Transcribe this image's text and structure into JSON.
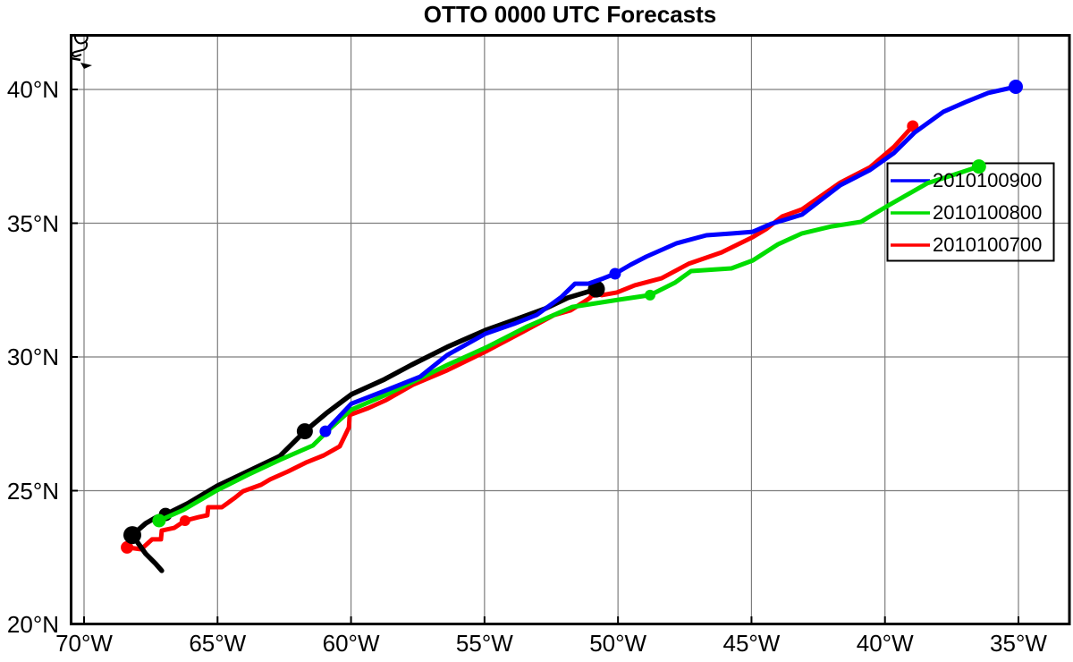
{
  "chart_data": {
    "type": "line",
    "title": "OTTO 0000 UTC Forecasts",
    "grid": true,
    "background": "#ffffff",
    "gridline_color": "#7d7d7d",
    "frame_color": "#000000",
    "x_axis": {
      "unit": "degrees west longitude",
      "ticks": [
        {
          "value": 70,
          "label": "70°W"
        },
        {
          "value": 65,
          "label": "65°W"
        },
        {
          "value": 60,
          "label": "60°W"
        },
        {
          "value": 55,
          "label": "55°W"
        },
        {
          "value": 50,
          "label": "50°W"
        },
        {
          "value": 45,
          "label": "45°W"
        },
        {
          "value": 40,
          "label": "40°W"
        },
        {
          "value": 35,
          "label": "35°W"
        }
      ],
      "range_deg_west": [
        70.55,
        33.1
      ]
    },
    "y_axis": {
      "unit": "degrees north latitude",
      "ticks": [
        {
          "value": 20,
          "label": "20°N"
        },
        {
          "value": 25,
          "label": "25°N"
        },
        {
          "value": 30,
          "label": "30°N"
        },
        {
          "value": 35,
          "label": "35°N"
        },
        {
          "value": 40,
          "label": "40°N"
        }
      ],
      "range_deg_north": [
        20.0,
        42.1
      ]
    },
    "legend": {
      "position": "right, between 35N and 40N",
      "entries": [
        {
          "label": "2010100900",
          "color": "#0000ff"
        },
        {
          "label": "2010100800",
          "color": "#00dd00"
        },
        {
          "label": "2010100700",
          "color": "#ff0000"
        }
      ]
    },
    "series": [
      {
        "name": "forecast-2010100700",
        "label": "2010100700",
        "color": "#ff0000",
        "line_width": 5,
        "points": [
          [
            68.39,
            22.88
          ],
          [
            67.86,
            22.81
          ],
          [
            67.45,
            23.18
          ],
          [
            67.12,
            23.18
          ],
          [
            67.09,
            23.51
          ],
          [
            66.62,
            23.61
          ],
          [
            66.22,
            23.88
          ],
          [
            65.71,
            24.01
          ],
          [
            65.38,
            24.08
          ],
          [
            65.35,
            24.38
          ],
          [
            64.84,
            24.38
          ],
          [
            64.37,
            24.72
          ],
          [
            64.04,
            24.98
          ],
          [
            63.37,
            25.22
          ],
          [
            63.03,
            25.42
          ],
          [
            62.36,
            25.72
          ],
          [
            61.69,
            26.05
          ],
          [
            61.02,
            26.32
          ],
          [
            60.42,
            26.66
          ],
          [
            60.08,
            27.36
          ],
          [
            60.05,
            27.83
          ],
          [
            59.35,
            28.09
          ],
          [
            58.68,
            28.39
          ],
          [
            57.68,
            28.96
          ],
          [
            56.4,
            29.5
          ],
          [
            54.9,
            30.23
          ],
          [
            53.56,
            30.94
          ],
          [
            52.39,
            31.57
          ],
          [
            51.78,
            31.74
          ],
          [
            51.35,
            32.01
          ],
          [
            51.05,
            32.21
          ],
          [
            50.91,
            32.41
          ],
          [
            50.61,
            32.31
          ],
          [
            50.04,
            32.41
          ],
          [
            49.37,
            32.68
          ],
          [
            48.37,
            32.94
          ],
          [
            47.36,
            33.48
          ],
          [
            46.12,
            33.91
          ],
          [
            44.95,
            34.48
          ],
          [
            44.45,
            34.78
          ],
          [
            43.85,
            35.25
          ],
          [
            43.11,
            35.52
          ],
          [
            41.67,
            36.52
          ],
          [
            40.56,
            37.09
          ],
          [
            39.66,
            37.86
          ],
          [
            38.96,
            38.63
          ]
        ],
        "markers": [
          [
            68.39,
            22.88,
            7
          ],
          [
            66.22,
            23.88,
            6
          ],
          [
            50.91,
            32.41,
            6
          ],
          [
            38.96,
            38.63,
            6.5
          ]
        ]
      },
      {
        "name": "observed-track",
        "label": "",
        "color": "#000000",
        "line_width": 5.5,
        "points": [
          [
            67.09,
            22.01
          ],
          [
            67.32,
            22.27
          ],
          [
            67.69,
            22.64
          ],
          [
            68.19,
            23.34
          ],
          [
            67.69,
            23.78
          ],
          [
            67.29,
            24.01
          ],
          [
            66.95,
            24.11
          ],
          [
            66.12,
            24.52
          ],
          [
            65.01,
            25.18
          ],
          [
            63.87,
            25.72
          ],
          [
            62.67,
            26.29
          ],
          [
            61.73,
            27.22
          ],
          [
            60.93,
            27.89
          ],
          [
            59.99,
            28.6
          ],
          [
            58.75,
            29.16
          ],
          [
            57.74,
            29.7
          ],
          [
            56.4,
            30.37
          ],
          [
            54.96,
            31.0
          ],
          [
            53.72,
            31.44
          ],
          [
            52.72,
            31.81
          ],
          [
            51.88,
            32.21
          ],
          [
            51.21,
            32.41
          ],
          [
            50.81,
            32.54
          ]
        ],
        "markers": [
          [
            68.19,
            23.34,
            10
          ],
          [
            66.95,
            24.11,
            7.5
          ],
          [
            61.73,
            27.22,
            9
          ],
          [
            50.81,
            32.54,
            9.5
          ]
        ]
      },
      {
        "name": "forecast-2010100800",
        "label": "2010100800",
        "color": "#00dd00",
        "line_width": 5,
        "points": [
          [
            67.19,
            23.88
          ],
          [
            66.28,
            24.28
          ],
          [
            65.01,
            25.02
          ],
          [
            63.87,
            25.59
          ],
          [
            62.67,
            26.15
          ],
          [
            61.43,
            26.69
          ],
          [
            60.7,
            27.4
          ],
          [
            59.99,
            28.03
          ],
          [
            58.75,
            28.56
          ],
          [
            57.41,
            29.2
          ],
          [
            56.4,
            29.7
          ],
          [
            54.9,
            30.37
          ],
          [
            53.39,
            31.14
          ],
          [
            51.71,
            31.87
          ],
          [
            49.97,
            32.14
          ],
          [
            48.8,
            32.31
          ],
          [
            47.86,
            32.78
          ],
          [
            47.26,
            33.21
          ],
          [
            45.75,
            33.31
          ],
          [
            44.95,
            33.61
          ],
          [
            44.01,
            34.21
          ],
          [
            43.11,
            34.62
          ],
          [
            42.0,
            34.88
          ],
          [
            40.9,
            35.05
          ],
          [
            39.9,
            35.65
          ],
          [
            38.42,
            36.49
          ],
          [
            37.49,
            36.79
          ],
          [
            36.48,
            37.12
          ]
        ],
        "markers": [
          [
            67.19,
            23.88,
            7.5
          ],
          [
            48.8,
            32.31,
            6
          ],
          [
            36.48,
            37.12,
            8
          ]
        ]
      },
      {
        "name": "forecast-2010100900",
        "label": "2010100900",
        "color": "#0000ff",
        "line_width": 5,
        "points": [
          [
            60.96,
            27.22
          ],
          [
            59.99,
            28.25
          ],
          [
            58.75,
            28.73
          ],
          [
            57.41,
            29.26
          ],
          [
            56.4,
            30.07
          ],
          [
            54.96,
            30.87
          ],
          [
            53.89,
            31.24
          ],
          [
            53.05,
            31.57
          ],
          [
            52.12,
            32.24
          ],
          [
            51.61,
            32.74
          ],
          [
            51.11,
            32.74
          ],
          [
            50.54,
            32.94
          ],
          [
            50.11,
            33.11
          ],
          [
            49.54,
            33.44
          ],
          [
            48.94,
            33.75
          ],
          [
            47.8,
            34.25
          ],
          [
            46.69,
            34.55
          ],
          [
            45.69,
            34.62
          ],
          [
            44.95,
            34.68
          ],
          [
            44.25,
            34.98
          ],
          [
            43.11,
            35.32
          ],
          [
            41.67,
            36.42
          ],
          [
            40.56,
            36.99
          ],
          [
            39.66,
            37.63
          ],
          [
            38.89,
            38.39
          ],
          [
            37.82,
            39.16
          ],
          [
            36.98,
            39.53
          ],
          [
            36.14,
            39.87
          ],
          [
            35.1,
            40.1
          ]
        ],
        "markers": [
          [
            60.96,
            27.22,
            6.5
          ],
          [
            50.11,
            33.11,
            6.5
          ],
          [
            35.1,
            40.1,
            8
          ]
        ]
      }
    ]
  }
}
